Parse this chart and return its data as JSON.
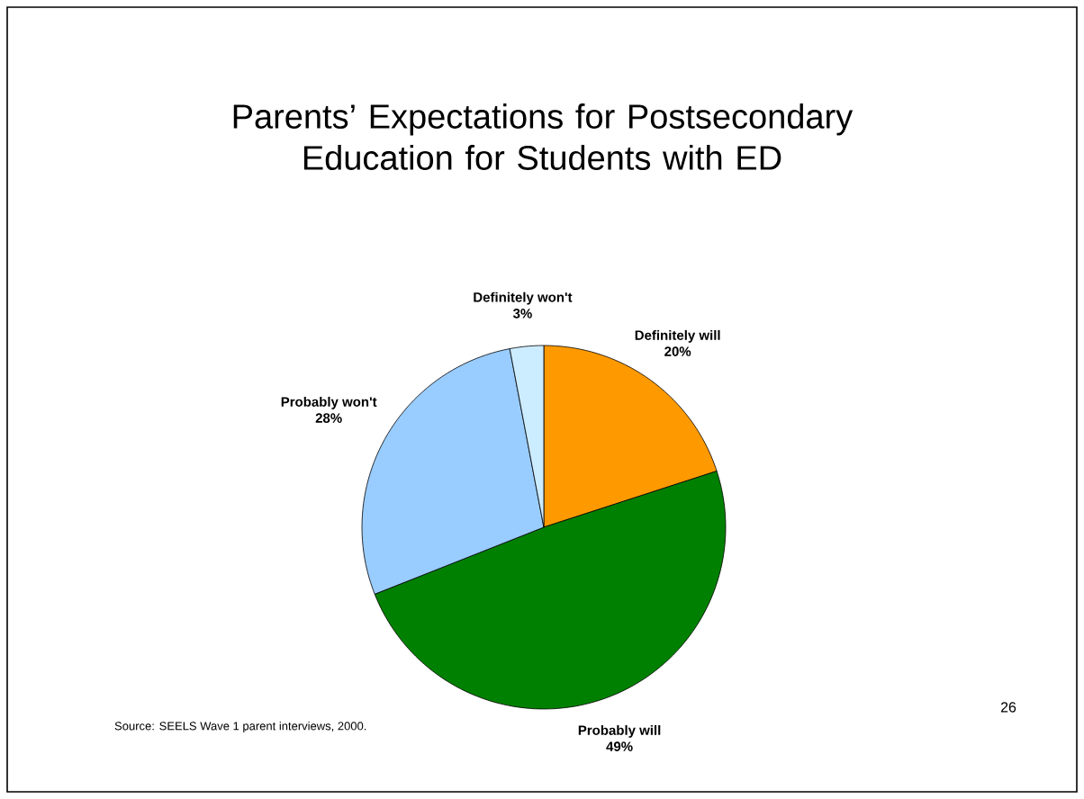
{
  "chart_data": {
    "type": "pie",
    "title": "Parents’ Expectations for Postsecondary Education for Students with ED",
    "categories": [
      "Definitely will",
      "Probably will",
      "Probably won't",
      "Definitely won't"
    ],
    "values": [
      20,
      49,
      28,
      3
    ],
    "value_labels": [
      "20%",
      "49%",
      "28%",
      "3%"
    ],
    "colors": [
      "#ff9900",
      "#008000",
      "#99ccff",
      "#ccecff"
    ],
    "annotations": [
      "Source: SEELS Wave 1 parent interviews, 2000.",
      "26"
    ]
  }
}
